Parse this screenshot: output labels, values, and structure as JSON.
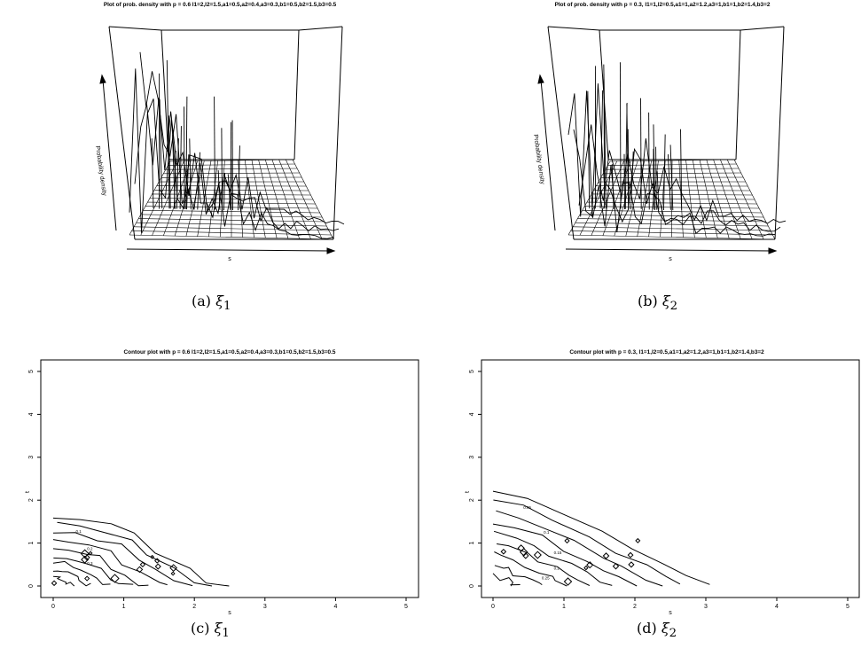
{
  "figure": {
    "panels": [
      {
        "id": "a",
        "caption_label": "(a)",
        "caption_symbol": "ξ",
        "caption_sub": "1"
      },
      {
        "id": "b",
        "caption_label": "(b)",
        "caption_symbol": "ξ",
        "caption_sub": "2"
      },
      {
        "id": "c",
        "caption_label": "(c)",
        "caption_symbol": "ξ",
        "caption_sub": "1"
      },
      {
        "id": "d",
        "caption_label": "(d)",
        "caption_symbol": "ξ",
        "caption_sub": "2"
      }
    ]
  },
  "chart_data": [
    {
      "type": "surface",
      "title": "Plot of prob. density with p = 0.6 l1=2,l2=1.5,a1=0.5,a2=0.4,a3=0.3,b1=0.5,b2=1.5,b3=0.5",
      "xlabel": "s",
      "zlabel": "Probability density"
    },
    {
      "type": "surface",
      "title": "Plot of prob. density with p = 0.3, l1=1,l2=0.5,a1=1,a2=1.2,a3=1,b1=1,b2=1.4,b3=2",
      "xlabel": "s",
      "zlabel": "Probability density"
    },
    {
      "type": "contour",
      "title": "Contour plot with p = 0.6 l1=2,l2=1.5,a1=0.5,a2=0.4,a3=0.3,b1=0.5,b2=1.5,b3=0.5",
      "xlabel": "s",
      "ylabel": "t",
      "xlim": [
        0,
        5
      ],
      "ylim": [
        0,
        5
      ],
      "xticks": [
        "0",
        "1",
        "2",
        "3",
        "4",
        "5"
      ],
      "yticks": [
        "0",
        "1",
        "2",
        "3",
        "4",
        "5"
      ],
      "outer_extent": [
        [
          0,
          1.6
        ],
        [
          0.4,
          1.55
        ],
        [
          0.8,
          1.4
        ],
        [
          1.2,
          1.25
        ],
        [
          1.5,
          0.8
        ],
        [
          1.9,
          0.45
        ],
        [
          2.2,
          0.1
        ],
        [
          2.5,
          0.0
        ]
      ],
      "contour_labels": [
        "0.1",
        "0.2",
        "0.3"
      ]
    },
    {
      "type": "contour",
      "title": "Contour plot with p = 0.3, l1=1,l2=0.5,a1=1,a2=1.2,a3=1,b1=1,b2=1.4,b3=2",
      "xlabel": "s",
      "ylabel": "t",
      "xlim": [
        0,
        5
      ],
      "ylim": [
        0,
        5
      ],
      "xticks": [
        "0",
        "1",
        "2",
        "3",
        "4",
        "5"
      ],
      "yticks": [
        "0",
        "1",
        "2",
        "3",
        "4",
        "5"
      ],
      "outer_extent": [
        [
          0,
          2.25
        ],
        [
          0.5,
          2.1
        ],
        [
          1.0,
          1.7
        ],
        [
          1.5,
          1.3
        ],
        [
          2.0,
          0.9
        ],
        [
          2.4,
          0.55
        ],
        [
          2.7,
          0.25
        ],
        [
          3.0,
          0.0
        ]
      ],
      "contour_labels": [
        "0.05",
        "0.1",
        "0.15",
        "0.2",
        "0.25"
      ]
    }
  ]
}
